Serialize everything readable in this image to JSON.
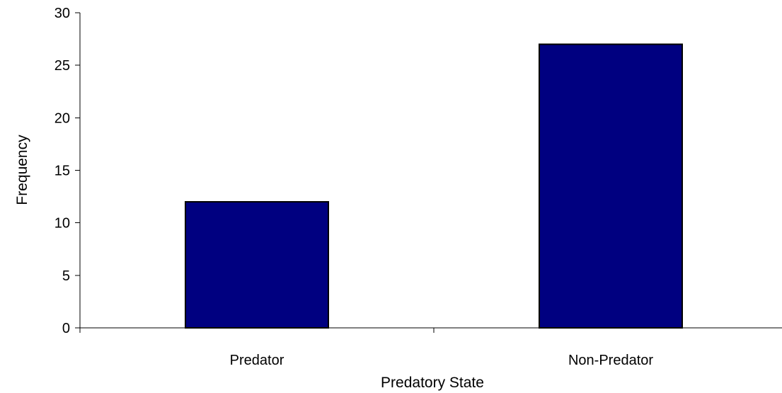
{
  "chart_data": {
    "type": "bar",
    "title": "",
    "xlabel": "Predatory State",
    "ylabel": "Frequency",
    "categories": [
      "Predator",
      "Non-Predator"
    ],
    "values": [
      12,
      27
    ],
    "ylim": [
      0,
      30
    ],
    "yticks": [
      "0",
      "5",
      "10",
      "15",
      "20",
      "25",
      "30"
    ],
    "grid": false,
    "legend": "none",
    "bar_color": "#000080"
  }
}
